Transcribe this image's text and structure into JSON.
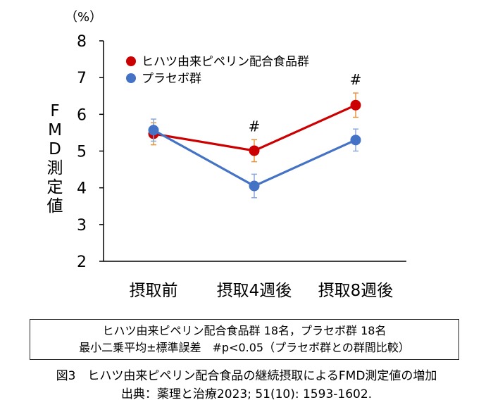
{
  "chart_data": {
    "type": "line",
    "unit_label": "（%）",
    "ylabel": "FMD測定値",
    "ylim": [
      2,
      8
    ],
    "yticks": [
      "2",
      "3",
      "4",
      "5",
      "6",
      "7",
      "8"
    ],
    "categories": [
      "摂取前",
      "摂取4週後",
      "摂取8週後"
    ],
    "grid": false,
    "legend_position": "top-left",
    "series": [
      {
        "name": "ヒハツ由来ピペリン配合食品群",
        "color": "#cc0000",
        "values": [
          5.47,
          5.01,
          6.25
        ],
        "errors": [
          0.3,
          0.3,
          0.33
        ]
      },
      {
        "name": "プラセボ群",
        "color": "#4472c4",
        "values": [
          5.57,
          4.05,
          5.3
        ],
        "errors": [
          0.3,
          0.32,
          0.3
        ]
      }
    ],
    "annotations": [
      {
        "text": "#",
        "category_index": 1
      },
      {
        "text": "#",
        "category_index": 2
      }
    ]
  },
  "note": {
    "line1": "ヒハツ由来ピペリン配合食品群 18名，プラセボ群 18名",
    "line2": "最小二乗平均±標準誤差　#p<0.05（プラセボ群との群間比較）"
  },
  "caption": {
    "line1": "図3　ヒハツ由来ピペリン配合食品の継続摂取によるFMD測定値の増加",
    "line2": "出典：薬理と治療2023; 51(10): 1593-1602."
  }
}
